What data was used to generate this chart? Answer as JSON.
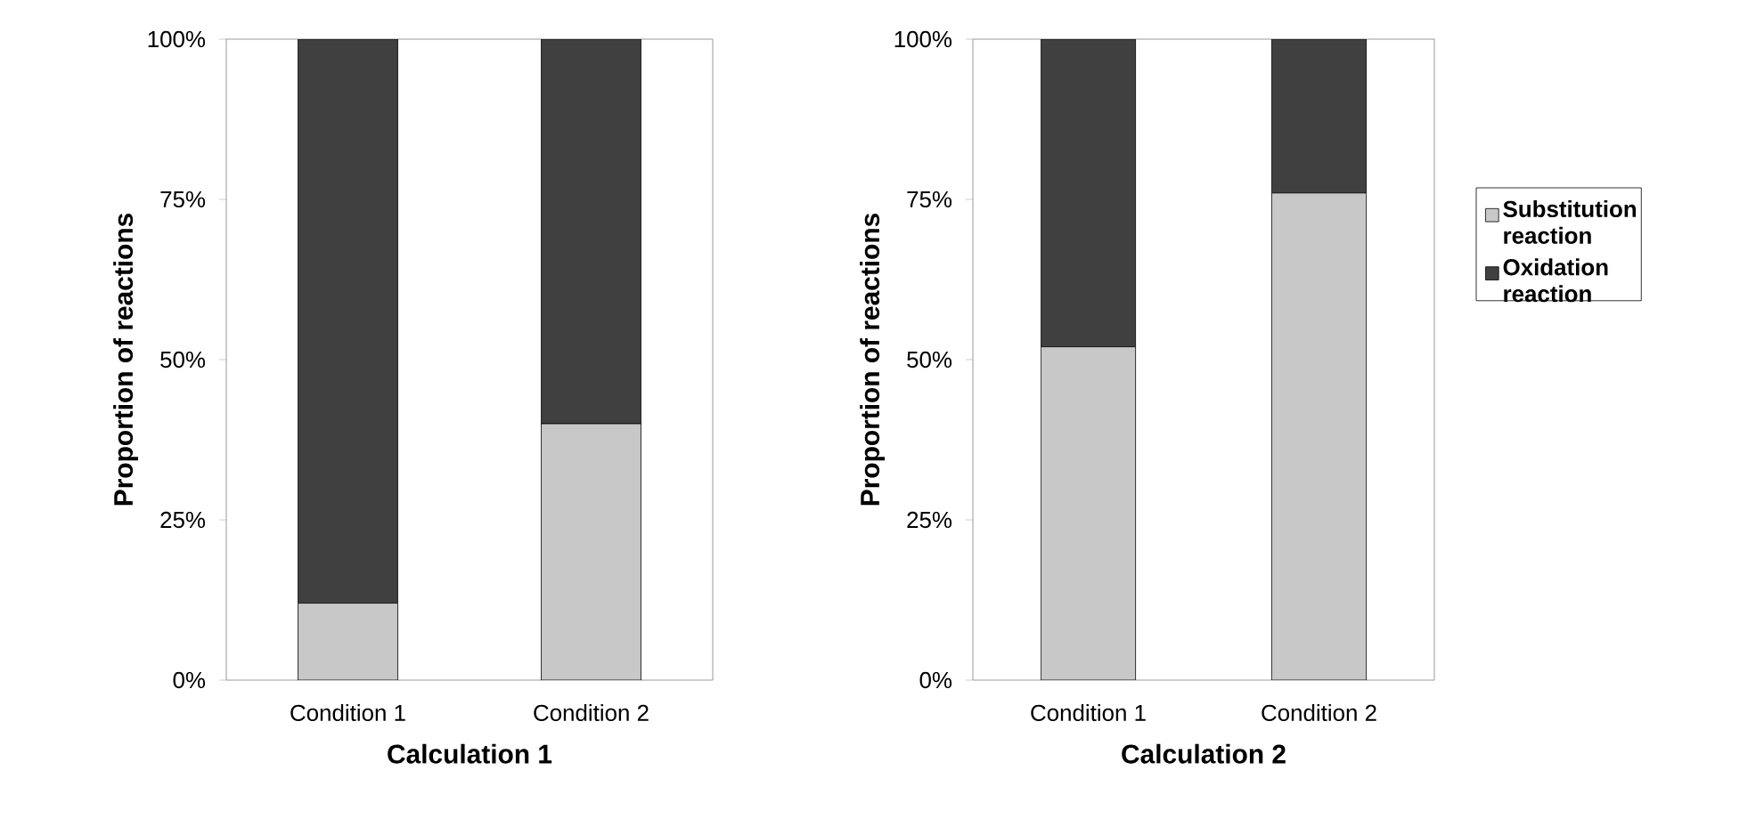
{
  "chart_data": [
    {
      "type": "bar",
      "stacked": true,
      "xlabel": "Calculation 1",
      "ylabel": "Proportion of reactions",
      "categories": [
        "Condition 1",
        "Condition 2"
      ],
      "series": [
        {
          "color": "#c8c8c8",
          "values": [
            12,
            40
          ]
        },
        {
          "color": "#404040",
          "values": [
            88,
            60
          ]
        }
      ],
      "ylim": [
        0,
        100
      ],
      "yticks": [
        {
          "value": 0,
          "label": "0%"
        },
        {
          "value": 25,
          "label": "25%"
        },
        {
          "value": 50,
          "label": "50%"
        },
        {
          "value": 75,
          "label": "75%"
        },
        {
          "value": 100,
          "label": "100%"
        }
      ]
    },
    {
      "type": "bar",
      "stacked": true,
      "xlabel": "Calculation 2",
      "ylabel": "Proportion of reactions",
      "categories": [
        "Condition 1",
        "Condition 2"
      ],
      "series": [
        {
          "name": "Substitution reaction",
          "color": "#c8c8c8",
          "values": [
            52,
            76
          ]
        },
        {
          "name": "Oxidation reaction",
          "color": "#404040",
          "values": [
            48,
            24
          ]
        }
      ],
      "ylim": [
        0,
        100
      ],
      "yticks": [
        {
          "value": 0,
          "label": "0%"
        },
        {
          "value": 25,
          "label": "25%"
        },
        {
          "value": 50,
          "label": "50%"
        },
        {
          "value": 75,
          "label": "75%"
        },
        {
          "value": 100,
          "label": "100%"
        }
      ],
      "legend": "right"
    }
  ]
}
